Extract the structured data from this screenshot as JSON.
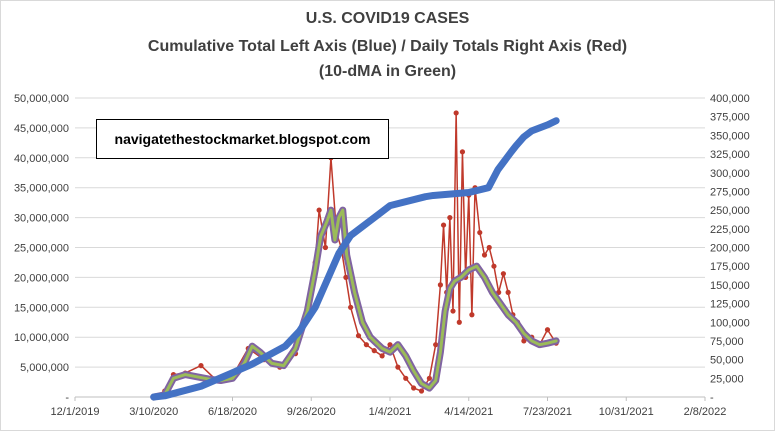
{
  "chart_data": {
    "type": "line",
    "title": "U.S. COVID19 CASES",
    "subtitle_1": "Cumulative Total Left Axis (Blue) / Daily Totals Right Axis (Red)",
    "subtitle_2": "(10-dMA in Green)",
    "annotation": "navigatethestockmarket.blogspot.com",
    "x_axis": {
      "type": "date",
      "range": [
        "2019-12-01",
        "2022-02-08"
      ],
      "tick_labels": [
        "12/1/2019",
        "3/10/2020",
        "6/18/2020",
        "9/26/2020",
        "1/4/2021",
        "4/14/2021",
        "7/23/2021",
        "10/31/2021",
        "2/8/2022"
      ]
    },
    "y_left": {
      "ylim": [
        0,
        50000000
      ],
      "tick_labels": [
        "-",
        "5,000,000",
        "10,000,000",
        "15,000,000",
        "20,000,000",
        "25,000,000",
        "30,000,000",
        "35,000,000",
        "40,000,000",
        "45,000,000",
        "50,000,000"
      ]
    },
    "y_right": {
      "ylim": [
        0,
        400000
      ],
      "tick_labels": [
        "-",
        "25,000",
        "50,000",
        "75,000",
        "100,000",
        "125,000",
        "150,000",
        "175,000",
        "200,000",
        "225,000",
        "250,000",
        "275,000",
        "300,000",
        "325,000",
        "350,000",
        "375,000",
        "400,000"
      ]
    },
    "series": [
      {
        "name": "Cumulative Total",
        "axis": "left",
        "color": "#4472c4",
        "x": [
          0,
          14,
          60,
          99,
          125,
          167,
          185,
          205,
          215,
          225,
          235,
          250,
          300,
          345,
          355,
          400,
          425,
          437,
          454,
          460,
          470,
          480,
          500,
          511
        ],
        "y": [
          0,
          200000,
          1800000,
          4000000,
          5500000,
          8500000,
          11000000,
          15000000,
          18000000,
          21000000,
          24000000,
          27000000,
          32000000,
          33500000,
          33700000,
          34200000,
          35000000,
          38000000,
          41000000,
          42000000,
          43500000,
          44500000,
          45500000,
          46200000
        ]
      },
      {
        "name": "Daily Totals",
        "axis": "right",
        "color": "#c0392b",
        "x": [
          0,
          14,
          25,
          40,
          60,
          80,
          100,
          120,
          140,
          160,
          180,
          195,
          205,
          210,
          218,
          225,
          232,
          238,
          244,
          250,
          260,
          270,
          280,
          290,
          300,
          310,
          320,
          330,
          340,
          350,
          358,
          364,
          368,
          372,
          376,
          380,
          384,
          388,
          392,
          396,
          400,
          404,
          408,
          414,
          420,
          426,
          432,
          438,
          444,
          450,
          456,
          462,
          470,
          480,
          490,
          500,
          511
        ],
        "y": [
          0,
          8000,
          30000,
          32000,
          42000,
          22000,
          28000,
          65000,
          50000,
          40000,
          58000,
          120000,
          180000,
          250000,
          200000,
          320000,
          220000,
          200000,
          160000,
          120000,
          82000,
          70000,
          62000,
          55000,
          70000,
          40000,
          25000,
          12000,
          8000,
          25000,
          70000,
          150000,
          230000,
          140000,
          240000,
          115000,
          380000,
          100000,
          328000,
          160000,
          270000,
          110000,
          280000,
          220000,
          190000,
          200000,
          175000,
          140000,
          165000,
          140000,
          110000,
          100000,
          75000,
          80000,
          70000,
          90000,
          72000
        ]
      },
      {
        "name": "10-dMA",
        "axis": "right",
        "color": "#9bbb59",
        "x": [
          0,
          14,
          25,
          40,
          55,
          70,
          85,
          100,
          115,
          125,
          135,
          150,
          165,
          180,
          195,
          205,
          212,
          220,
          225,
          230,
          235,
          240,
          245,
          255,
          265,
          275,
          290,
          300,
          310,
          320,
          330,
          340,
          350,
          358,
          364,
          370,
          376,
          382,
          390,
          400,
          410,
          420,
          430,
          440,
          450,
          460,
          470,
          480,
          490,
          500,
          511
        ],
        "y": [
          0,
          3000,
          25000,
          30000,
          27000,
          24000,
          22000,
          25000,
          45000,
          68000,
          60000,
          45000,
          42000,
          65000,
          115000,
          170000,
          215000,
          235000,
          250000,
          210000,
          240000,
          250000,
          190000,
          140000,
          100000,
          80000,
          65000,
          60000,
          70000,
          55000,
          35000,
          18000,
          12000,
          22000,
          60000,
          115000,
          145000,
          155000,
          160000,
          170000,
          175000,
          160000,
          140000,
          125000,
          110000,
          100000,
          85000,
          75000,
          70000,
          72000,
          75000
        ]
      }
    ]
  }
}
